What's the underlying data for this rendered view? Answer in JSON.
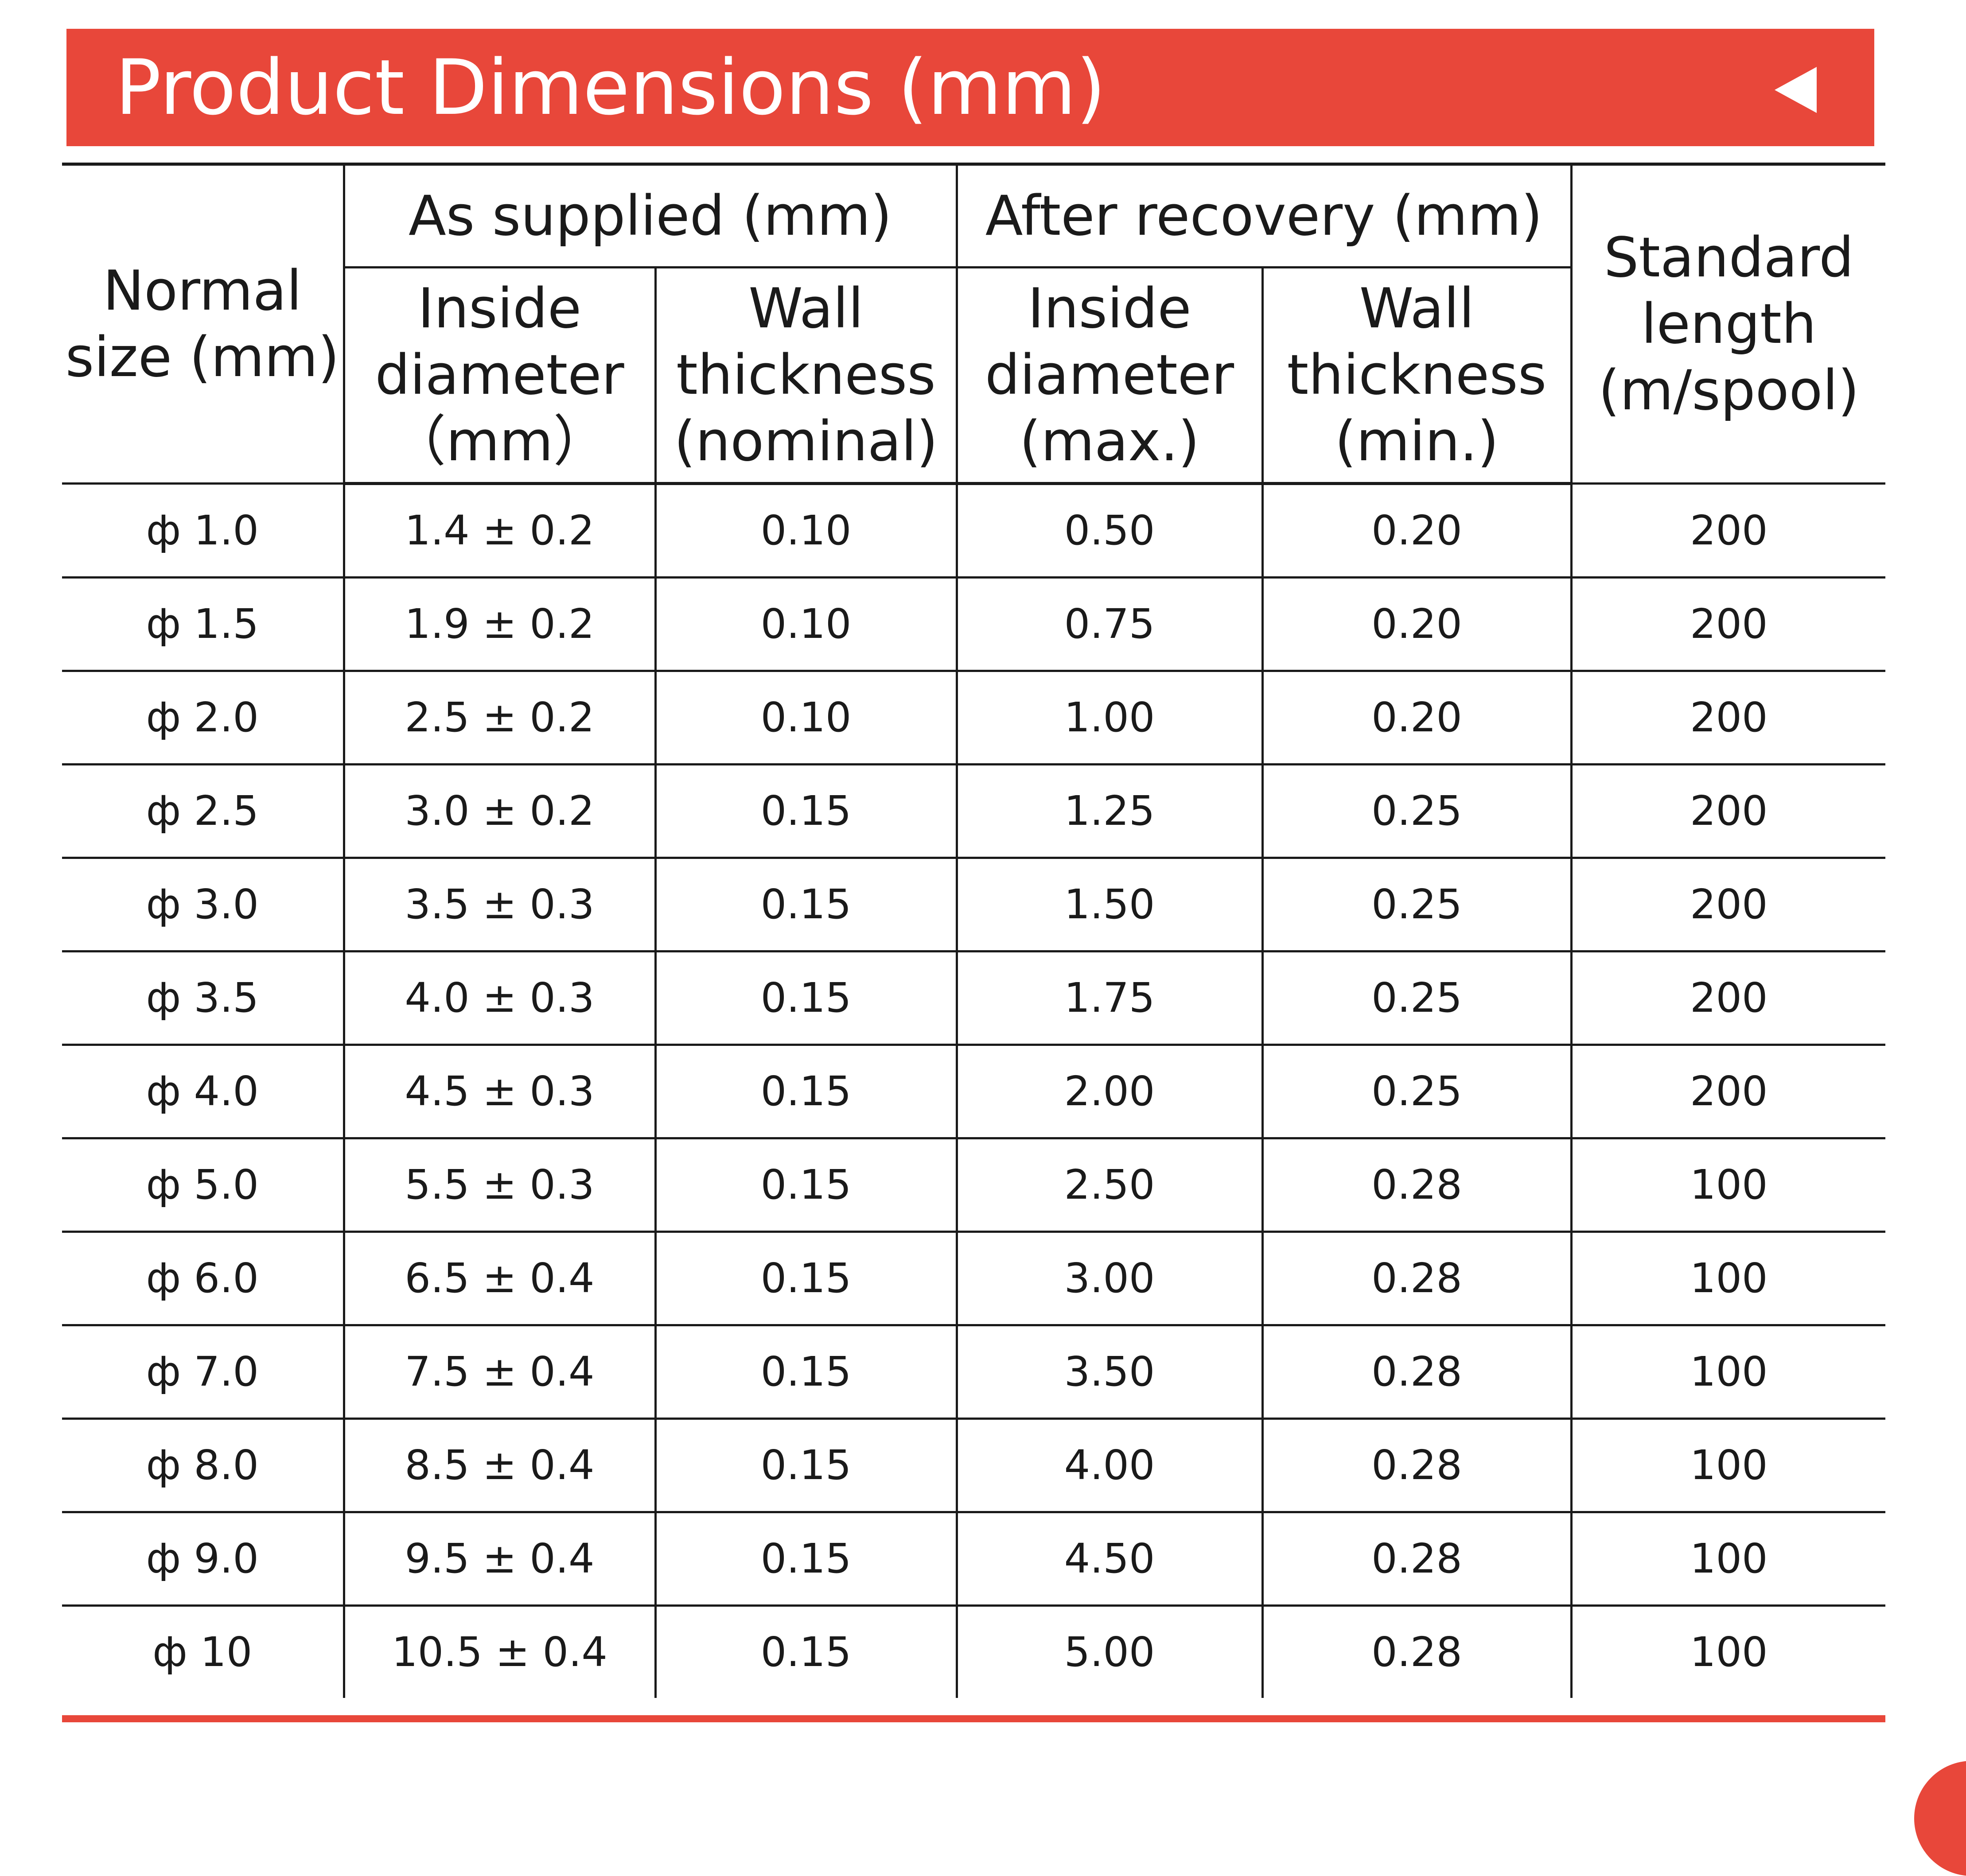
{
  "title": "Product Dimensions (mm)",
  "title_bar_color": "#e8473a",
  "arrow_icon": "left-triangle-icon",
  "headers": {
    "normal_size": "Normal size (mm)",
    "as_supplied": "As supplied (mm)",
    "after_recovery": "After recovery (mm)",
    "standard_length": "Standard length (m/spool)",
    "supplied_inside_diameter": "Inside diameter （mm）",
    "supplied_wall_thickness": "Wall thickness (nominal)",
    "recovery_inside_diameter": "Inside diameter (max.)",
    "recovery_wall_thickness": "Wall thickness (min.)"
  },
  "rows": [
    [
      "ф 1.0",
      "1.4 ± 0.2",
      "0.10",
      "0.50",
      "0.20",
      "200"
    ],
    [
      "ф 1.5",
      "1.9 ± 0.2",
      "0.10",
      "0.75",
      "0.20",
      "200"
    ],
    [
      "ф 2.0",
      "2.5 ± 0.2",
      "0.10",
      "1.00",
      "0.20",
      "200"
    ],
    [
      "ф 2.5",
      "3.0 ± 0.2",
      "0.15",
      "1.25",
      "0.25",
      "200"
    ],
    [
      "ф 3.0",
      "3.5 ± 0.3",
      "0.15",
      "1.50",
      "0.25",
      "200"
    ],
    [
      "ф 3.5",
      "4.0 ± 0.3",
      "0.15",
      "1.75",
      "0.25",
      "200"
    ],
    [
      "ф 4.0",
      "4.5 ± 0.3",
      "0.15",
      "2.00",
      "0.25",
      "200"
    ],
    [
      "ф 5.0",
      "5.5 ± 0.3",
      "0.15",
      "2.50",
      "0.28",
      "100"
    ],
    [
      "ф 6.0",
      "6.5 ± 0.4",
      "0.15",
      "3.00",
      "0.28",
      "100"
    ],
    [
      "ф 7.0",
      "7.5 ± 0.4",
      "0.15",
      "3.50",
      "0.28",
      "100"
    ],
    [
      "ф 8.0",
      "8.5 ± 0.4",
      "0.15",
      "4.00",
      "0.28",
      "100"
    ],
    [
      "ф 9.0",
      "9.5 ± 0.4",
      "0.15",
      "4.50",
      "0.28",
      "100"
    ],
    [
      "ф 10",
      "10.5 ± 0.4",
      "0.15",
      "5.00",
      "0.28",
      "100"
    ]
  ]
}
